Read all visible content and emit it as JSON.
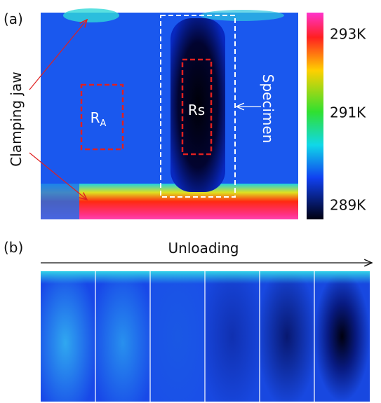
{
  "panel_a": {
    "label": "(a)",
    "clamping_label": "Clamping jaw",
    "specimen_label": "Specimen",
    "region_s": "Rs",
    "region_a": {
      "main": "R",
      "sub": "A"
    },
    "colorbar": {
      "ticks": [
        "293K",
        "291K",
        "289K"
      ]
    }
  },
  "panel_b": {
    "label": "(b)",
    "arrow_label": "Unloading"
  }
}
